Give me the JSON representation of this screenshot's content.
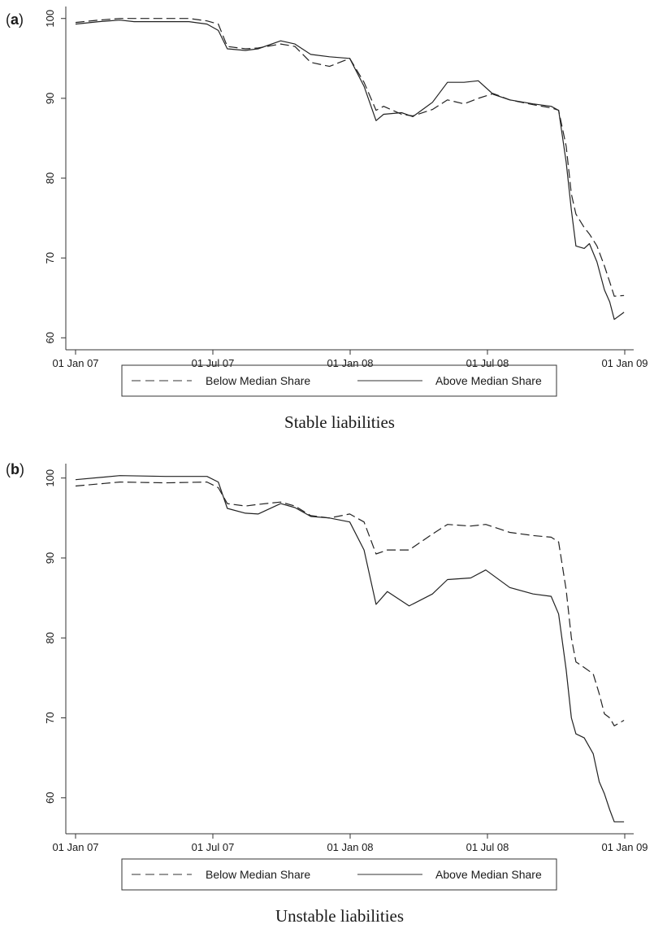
{
  "chart_data": [
    {
      "type": "line",
      "panel_label": "a",
      "caption": "Stable liabilities",
      "xticks": [
        "01 Jan 07",
        "01 Jul 07",
        "01 Jan 08",
        "01 Jul 08",
        "01 Jan 09"
      ],
      "yticks": [
        60,
        70,
        80,
        90,
        100
      ],
      "ylim": [
        58.5,
        101.5
      ],
      "xlim": [
        "2007-01-01",
        "2009-01-01"
      ],
      "legend_position": "bottom",
      "series": [
        {
          "name": "Below Median Share",
          "style": "dashed",
          "points": [
            [
              "2007-01-01",
              99.5
            ],
            [
              "2007-02-01",
              99.8
            ],
            [
              "2007-03-01",
              100.0
            ],
            [
              "2007-04-15",
              100.0
            ],
            [
              "2007-06-01",
              100.0
            ],
            [
              "2007-06-25",
              99.7
            ],
            [
              "2007-07-10",
              99.3
            ],
            [
              "2007-07-22",
              96.5
            ],
            [
              "2007-08-15",
              96.2
            ],
            [
              "2007-09-01",
              96.3
            ],
            [
              "2007-10-01",
              96.8
            ],
            [
              "2007-10-20",
              96.5
            ],
            [
              "2007-11-10",
              94.5
            ],
            [
              "2007-12-05",
              94.0
            ],
            [
              "2008-01-01",
              95.0
            ],
            [
              "2008-01-20",
              92.0
            ],
            [
              "2008-02-05",
              88.5
            ],
            [
              "2008-02-15",
              89.0
            ],
            [
              "2008-03-10",
              88.0
            ],
            [
              "2008-03-25",
              87.8
            ],
            [
              "2008-04-20",
              88.6
            ],
            [
              "2008-05-10",
              89.8
            ],
            [
              "2008-06-01",
              89.3
            ],
            [
              "2008-06-20",
              90.0
            ],
            [
              "2008-07-10",
              90.6
            ],
            [
              "2008-08-01",
              89.8
            ],
            [
              "2008-09-01",
              89.2
            ],
            [
              "2008-09-25",
              88.8
            ],
            [
              "2008-10-05",
              88.5
            ],
            [
              "2008-10-15",
              84.0
            ],
            [
              "2008-10-22",
              78.0
            ],
            [
              "2008-10-28",
              75.5
            ],
            [
              "2008-11-08",
              73.8
            ],
            [
              "2008-11-15",
              73.0
            ],
            [
              "2008-11-25",
              71.5
            ],
            [
              "2008-12-05",
              69.0
            ],
            [
              "2008-12-12",
              67.0
            ],
            [
              "2008-12-18",
              65.2
            ],
            [
              "2008-12-31",
              65.3
            ]
          ]
        },
        {
          "name": "Above Median Share",
          "style": "solid",
          "points": [
            [
              "2007-01-01",
              99.3
            ],
            [
              "2007-02-01",
              99.6
            ],
            [
              "2007-03-01",
              99.8
            ],
            [
              "2007-03-20",
              99.6
            ],
            [
              "2007-06-01",
              99.6
            ],
            [
              "2007-06-25",
              99.3
            ],
            [
              "2007-07-10",
              98.5
            ],
            [
              "2007-07-22",
              96.2
            ],
            [
              "2007-08-15",
              96.0
            ],
            [
              "2007-09-01",
              96.2
            ],
            [
              "2007-10-01",
              97.2
            ],
            [
              "2007-10-20",
              96.8
            ],
            [
              "2007-11-10",
              95.5
            ],
            [
              "2007-12-05",
              95.2
            ],
            [
              "2008-01-01",
              95.0
            ],
            [
              "2008-01-20",
              91.5
            ],
            [
              "2008-02-05",
              87.2
            ],
            [
              "2008-02-15",
              88.0
            ],
            [
              "2008-03-10",
              88.2
            ],
            [
              "2008-03-25",
              87.7
            ],
            [
              "2008-04-20",
              89.5
            ],
            [
              "2008-05-10",
              92.0
            ],
            [
              "2008-06-01",
              92.0
            ],
            [
              "2008-06-20",
              92.2
            ],
            [
              "2008-07-10",
              90.5
            ],
            [
              "2008-08-01",
              89.8
            ],
            [
              "2008-09-01",
              89.3
            ],
            [
              "2008-09-25",
              89.0
            ],
            [
              "2008-10-05",
              88.5
            ],
            [
              "2008-10-15",
              82.0
            ],
            [
              "2008-10-22",
              76.0
            ],
            [
              "2008-10-28",
              71.5
            ],
            [
              "2008-11-08",
              71.2
            ],
            [
              "2008-11-15",
              71.8
            ],
            [
              "2008-11-25",
              69.5
            ],
            [
              "2008-12-05",
              66.0
            ],
            [
              "2008-12-12",
              64.5
            ],
            [
              "2008-12-18",
              62.3
            ],
            [
              "2008-12-31",
              63.2
            ]
          ]
        }
      ]
    },
    {
      "type": "line",
      "panel_label": "b",
      "caption": "Unstable liabilities",
      "xticks": [
        "01 Jan 07",
        "01 Jul 07",
        "01 Jan 08",
        "01 Jul 08",
        "01 Jan 09"
      ],
      "yticks": [
        60,
        70,
        80,
        90,
        100
      ],
      "ylim": [
        55.5,
        101.8
      ],
      "xlim": [
        "2007-01-01",
        "2009-01-01"
      ],
      "legend_position": "bottom",
      "series": [
        {
          "name": "Below Median Share",
          "style": "dashed",
          "points": [
            [
              "2007-01-01",
              99.0
            ],
            [
              "2007-03-01",
              99.5
            ],
            [
              "2007-05-01",
              99.4
            ],
            [
              "2007-06-25",
              99.5
            ],
            [
              "2007-07-10",
              98.8
            ],
            [
              "2007-07-22",
              96.8
            ],
            [
              "2007-08-15",
              96.5
            ],
            [
              "2007-09-01",
              96.7
            ],
            [
              "2007-10-01",
              97.0
            ],
            [
              "2007-10-20",
              96.5
            ],
            [
              "2007-11-10",
              95.3
            ],
            [
              "2007-12-05",
              95.0
            ],
            [
              "2008-01-01",
              95.5
            ],
            [
              "2008-01-20",
              94.5
            ],
            [
              "2008-02-05",
              90.5
            ],
            [
              "2008-02-20",
              91.0
            ],
            [
              "2008-03-20",
              91.0
            ],
            [
              "2008-04-20",
              93.0
            ],
            [
              "2008-05-10",
              94.2
            ],
            [
              "2008-06-10",
              94.0
            ],
            [
              "2008-06-30",
              94.2
            ],
            [
              "2008-08-01",
              93.2
            ],
            [
              "2008-09-01",
              92.8
            ],
            [
              "2008-09-25",
              92.6
            ],
            [
              "2008-10-05",
              92.0
            ],
            [
              "2008-10-15",
              86.0
            ],
            [
              "2008-10-22",
              80.0
            ],
            [
              "2008-10-28",
              77.0
            ],
            [
              "2008-11-08",
              76.3
            ],
            [
              "2008-11-20",
              75.5
            ],
            [
              "2008-11-28",
              73.0
            ],
            [
              "2008-12-05",
              70.5
            ],
            [
              "2008-12-12",
              70.0
            ],
            [
              "2008-12-18",
              69.0
            ],
            [
              "2008-12-31",
              69.7
            ]
          ]
        },
        {
          "name": "Above Median Share",
          "style": "solid",
          "points": [
            [
              "2007-01-01",
              99.8
            ],
            [
              "2007-03-01",
              100.3
            ],
            [
              "2007-05-01",
              100.2
            ],
            [
              "2007-06-25",
              100.2
            ],
            [
              "2007-07-10",
              99.5
            ],
            [
              "2007-07-22",
              96.2
            ],
            [
              "2007-08-15",
              95.6
            ],
            [
              "2007-09-01",
              95.5
            ],
            [
              "2007-10-01",
              96.8
            ],
            [
              "2007-10-20",
              96.3
            ],
            [
              "2007-11-10",
              95.2
            ],
            [
              "2007-12-05",
              95.0
            ],
            [
              "2008-01-01",
              94.5
            ],
            [
              "2008-01-20",
              91.0
            ],
            [
              "2008-02-05",
              84.2
            ],
            [
              "2008-02-20",
              85.8
            ],
            [
              "2008-03-20",
              84.0
            ],
            [
              "2008-04-20",
              85.5
            ],
            [
              "2008-05-10",
              87.3
            ],
            [
              "2008-06-10",
              87.5
            ],
            [
              "2008-06-30",
              88.5
            ],
            [
              "2008-08-01",
              86.3
            ],
            [
              "2008-09-01",
              85.5
            ],
            [
              "2008-09-25",
              85.2
            ],
            [
              "2008-10-05",
              83.0
            ],
            [
              "2008-10-15",
              76.0
            ],
            [
              "2008-10-22",
              70.0
            ],
            [
              "2008-10-28",
              68.0
            ],
            [
              "2008-11-08",
              67.5
            ],
            [
              "2008-11-20",
              65.5
            ],
            [
              "2008-11-28",
              62.0
            ],
            [
              "2008-12-05",
              60.5
            ],
            [
              "2008-12-12",
              58.5
            ],
            [
              "2008-12-18",
              57.0
            ],
            [
              "2008-12-31",
              57.0
            ]
          ]
        }
      ]
    }
  ]
}
